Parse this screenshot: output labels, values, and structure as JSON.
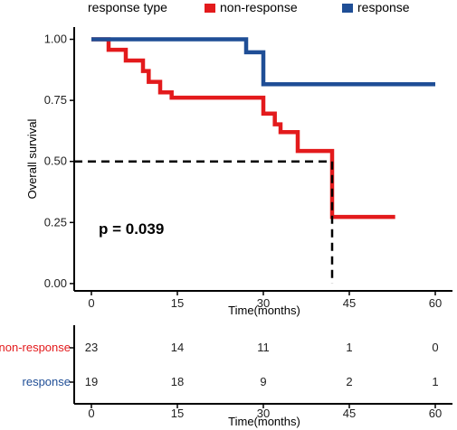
{
  "legend": {
    "title": "response type",
    "items": [
      {
        "label": "non-response",
        "color": "#e31a1c"
      },
      {
        "label": "response",
        "color": "#1f4e96"
      }
    ]
  },
  "p_value_text": "p = 0.039",
  "chart_data": [
    {
      "type": "line",
      "subtype": "kaplan-meier step curve",
      "ylabel": "Overall survival",
      "xlabel": "Time(months)",
      "xlim": [
        -3,
        63
      ],
      "ylim": [
        -0.03,
        1.05
      ],
      "x_ticks": [
        0,
        15,
        30,
        45,
        60
      ],
      "y_ticks": [
        0.0,
        0.25,
        0.5,
        0.75,
        1.0
      ],
      "y_tick_labels": [
        "0.00",
        "0.25",
        "0.50",
        "0.75",
        "1.00"
      ],
      "grid": false,
      "legend_position": "top",
      "series": [
        {
          "name": "non-response",
          "color": "#e31a1c",
          "steps": [
            [
              0,
              1.0
            ],
            [
              3,
              0.957
            ],
            [
              6,
              0.913
            ],
            [
              9,
              0.87
            ],
            [
              10,
              0.826
            ],
            [
              12,
              0.783
            ],
            [
              14,
              0.761
            ],
            [
              30,
              0.696
            ],
            [
              32,
              0.652
            ],
            [
              33,
              0.62
            ],
            [
              36,
              0.543
            ],
            [
              42,
              0.273
            ],
            [
              53,
              0.273
            ]
          ]
        },
        {
          "name": "response",
          "color": "#1f4e96",
          "steps": [
            [
              0,
              1.0
            ],
            [
              27,
              0.947
            ],
            [
              30,
              0.816
            ],
            [
              60,
              0.816
            ]
          ]
        }
      ],
      "median_reference": {
        "x": 42,
        "y": 0.5
      }
    },
    {
      "type": "table",
      "subtype": "number at risk",
      "xlabel": "Time(months)",
      "x_ticks": [
        0,
        15,
        30,
        45,
        60
      ],
      "rows": [
        {
          "label": "non-response",
          "color": "#e31a1c",
          "values": [
            23,
            14,
            11,
            1,
            0
          ]
        },
        {
          "label": "response",
          "color": "#1f4e96",
          "values": [
            19,
            18,
            9,
            2,
            1
          ]
        }
      ]
    }
  ]
}
